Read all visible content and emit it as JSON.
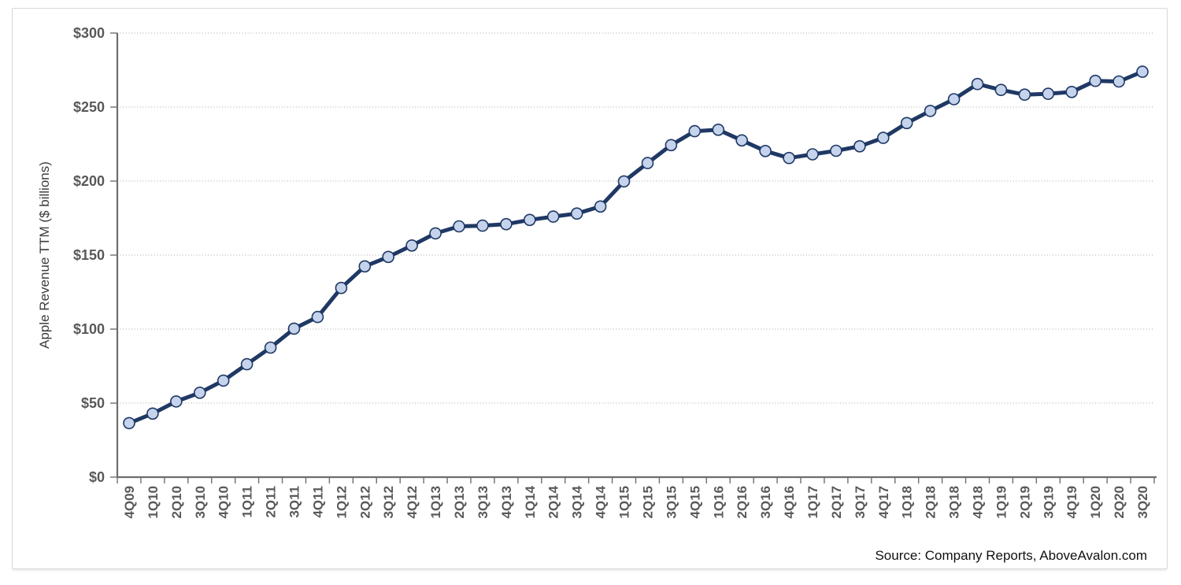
{
  "source_note": "Source: Company Reports, AboveAvalon.com",
  "colors": {
    "series_line": "#1F3864",
    "marker_fill": "#C5D3ED",
    "marker_stroke": "#1F3864",
    "gridline": "#A8A8A8",
    "axis_line": "#6E6E6E",
    "tick_label": "#595959",
    "axis_title": "#3D3D3D",
    "frame_border": "#D8D8D8",
    "source_text": "#111111"
  },
  "chart_data": {
    "type": "line",
    "title": "",
    "xlabel": "",
    "ylabel": "Apple Revenue TTM ($ billions)",
    "ylim": [
      0,
      300
    ],
    "ytick_step": 50,
    "ytick_labels": [
      "$0",
      "$50",
      "$100",
      "$150",
      "$200",
      "$250",
      "$300"
    ],
    "grid": "horizontal dotted lines every $50",
    "legend_position": "none",
    "marker_style": "circle",
    "x_label_rotation": -90,
    "categories": [
      "4Q09",
      "1Q10",
      "2Q10",
      "3Q10",
      "4Q10",
      "1Q11",
      "2Q11",
      "3Q11",
      "4Q11",
      "1Q12",
      "2Q12",
      "3Q12",
      "4Q12",
      "1Q13",
      "2Q13",
      "3Q13",
      "4Q13",
      "1Q14",
      "2Q14",
      "3Q14",
      "4Q14",
      "1Q15",
      "2Q15",
      "3Q15",
      "4Q15",
      "1Q16",
      "2Q16",
      "3Q16",
      "4Q16",
      "1Q17",
      "2Q17",
      "3Q17",
      "4Q17",
      "1Q18",
      "2Q18",
      "3Q18",
      "4Q18",
      "1Q19",
      "2Q19",
      "3Q19",
      "4Q19",
      "1Q20",
      "2Q20",
      "3Q20"
    ],
    "series": [
      {
        "name": "Apple Revenue TTM ($ billions)",
        "values": [
          36.5,
          42.9,
          51.1,
          57.0,
          65.2,
          76.3,
          87.5,
          100.3,
          108.2,
          127.8,
          142.4,
          148.8,
          156.5,
          164.7,
          169.4,
          169.9,
          170.9,
          173.8,
          176.0,
          178.1,
          182.8,
          199.8,
          212.2,
          224.3,
          233.7,
          234.7,
          227.5,
          220.3,
          215.6,
          218.1,
          220.5,
          223.5,
          229.2,
          239.2,
          247.4,
          255.3,
          265.6,
          261.6,
          258.4,
          259.0,
          260.2,
          267.7,
          267.3,
          273.9
        ]
      }
    ]
  }
}
